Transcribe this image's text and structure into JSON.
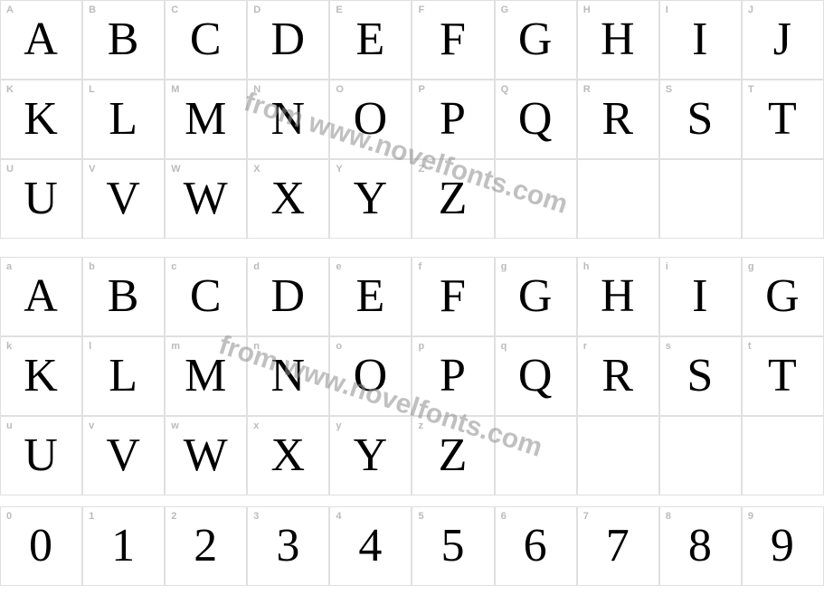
{
  "watermark_text": "from www.novelfonts.com",
  "watermark_color": "rgba(140,140,140,0.55)",
  "cell_border_color": "#e0e0e0",
  "label_color": "#bbbbbb",
  "glyph_color": "#000000",
  "background_color": "#ffffff",
  "glyph_fontsize": 52,
  "label_fontsize": 11,
  "sections": [
    {
      "name": "uppercase",
      "rows": [
        [
          {
            "label": "A",
            "glyph": "A"
          },
          {
            "label": "B",
            "glyph": "B"
          },
          {
            "label": "C",
            "glyph": "C"
          },
          {
            "label": "D",
            "glyph": "D"
          },
          {
            "label": "E",
            "glyph": "E"
          },
          {
            "label": "F",
            "glyph": "F"
          },
          {
            "label": "G",
            "glyph": "G"
          },
          {
            "label": "H",
            "glyph": "H"
          },
          {
            "label": "I",
            "glyph": "I"
          },
          {
            "label": "J",
            "glyph": "J"
          }
        ],
        [
          {
            "label": "K",
            "glyph": "K"
          },
          {
            "label": "L",
            "glyph": "L"
          },
          {
            "label": "M",
            "glyph": "M"
          },
          {
            "label": "N",
            "glyph": "N"
          },
          {
            "label": "O",
            "glyph": "O"
          },
          {
            "label": "P",
            "glyph": "P"
          },
          {
            "label": "Q",
            "glyph": "Q"
          },
          {
            "label": "R",
            "glyph": "R"
          },
          {
            "label": "S",
            "glyph": "S"
          },
          {
            "label": "T",
            "glyph": "T"
          }
        ],
        [
          {
            "label": "U",
            "glyph": "U"
          },
          {
            "label": "V",
            "glyph": "V"
          },
          {
            "label": "W",
            "glyph": "W"
          },
          {
            "label": "X",
            "glyph": "X"
          },
          {
            "label": "Y",
            "glyph": "Y"
          },
          {
            "label": "Z",
            "glyph": "Z"
          },
          {
            "label": "",
            "glyph": ""
          },
          {
            "label": "",
            "glyph": ""
          },
          {
            "label": "",
            "glyph": ""
          },
          {
            "label": "",
            "glyph": ""
          }
        ]
      ]
    },
    {
      "name": "lowercase",
      "rows": [
        [
          {
            "label": "a",
            "glyph": "A"
          },
          {
            "label": "b",
            "glyph": "B"
          },
          {
            "label": "c",
            "glyph": "C"
          },
          {
            "label": "d",
            "glyph": "D"
          },
          {
            "label": "e",
            "glyph": "E"
          },
          {
            "label": "f",
            "glyph": "F"
          },
          {
            "label": "g",
            "glyph": "G"
          },
          {
            "label": "h",
            "glyph": "H"
          },
          {
            "label": "i",
            "glyph": "I"
          },
          {
            "label": "g",
            "glyph": "G"
          }
        ],
        [
          {
            "label": "k",
            "glyph": "K"
          },
          {
            "label": "l",
            "glyph": "L"
          },
          {
            "label": "m",
            "glyph": "M"
          },
          {
            "label": "n",
            "glyph": "N"
          },
          {
            "label": "o",
            "glyph": "O"
          },
          {
            "label": "p",
            "glyph": "P"
          },
          {
            "label": "q",
            "glyph": "Q"
          },
          {
            "label": "r",
            "glyph": "R"
          },
          {
            "label": "s",
            "glyph": "S"
          },
          {
            "label": "t",
            "glyph": "T"
          }
        ],
        [
          {
            "label": "u",
            "glyph": "U"
          },
          {
            "label": "v",
            "glyph": "V"
          },
          {
            "label": "w",
            "glyph": "W"
          },
          {
            "label": "x",
            "glyph": "X"
          },
          {
            "label": "y",
            "glyph": "Y"
          },
          {
            "label": "z",
            "glyph": "Z"
          },
          {
            "label": "",
            "glyph": ""
          },
          {
            "label": "",
            "glyph": ""
          },
          {
            "label": "",
            "glyph": ""
          },
          {
            "label": "",
            "glyph": ""
          }
        ]
      ]
    },
    {
      "name": "digits",
      "rows": [
        [
          {
            "label": "0",
            "glyph": "0"
          },
          {
            "label": "1",
            "glyph": "1"
          },
          {
            "label": "2",
            "glyph": "2"
          },
          {
            "label": "3",
            "glyph": "3"
          },
          {
            "label": "4",
            "glyph": "4"
          },
          {
            "label": "5",
            "glyph": "5"
          },
          {
            "label": "6",
            "glyph": "6"
          },
          {
            "label": "7",
            "glyph": "7"
          },
          {
            "label": "8",
            "glyph": "8"
          },
          {
            "label": "9",
            "glyph": "9"
          }
        ]
      ]
    }
  ]
}
